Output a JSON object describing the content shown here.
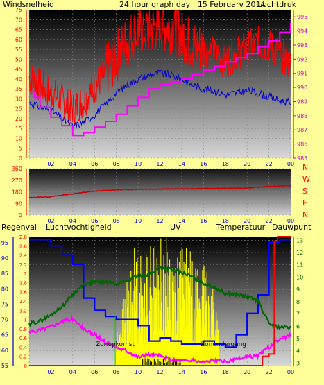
{
  "colors": {
    "bg": "#ffff99",
    "windspeed": "#ff0000",
    "gust": "#0000cc",
    "pressure": "#ff00ff",
    "direction": "#cc0000",
    "humidity": "#0000ff",
    "temperature": "#006600",
    "dewpoint": "#ff00ff",
    "rain": "#ff0000",
    "uv": "#ffff00",
    "solar_green": "#00cc00",
    "lbl_red": "#ff0000",
    "lbl_blue": "#0000cc",
    "lbl_magenta": "#cc00cc",
    "lbl_green": "#006600",
    "lbl_title": "#0000cc"
  },
  "chart_data": [
    {
      "type": "line",
      "title": "24 hour graph day : 15 Februarv 2014",
      "left_axis_label": "Windsnelheid",
      "right_axis_label": "Luchtdruk",
      "x_ticks": [
        "02",
        "04",
        "06",
        "08",
        "10",
        "12",
        "14",
        "16",
        "18",
        "20",
        "22",
        "00"
      ],
      "x_hours": [
        0,
        2,
        4,
        6,
        8,
        10,
        12,
        14,
        16,
        18,
        20,
        22,
        24
      ],
      "yleft_ticks": [
        0,
        5,
        10,
        15,
        20,
        25,
        30,
        35,
        40,
        45,
        50,
        55,
        60,
        65,
        70,
        75
      ],
      "yleft_lim": [
        0,
        75
      ],
      "yright_ticks": [
        985,
        986,
        987,
        988,
        989,
        990,
        991,
        992,
        993,
        994,
        995
      ],
      "yright_lim": [
        985,
        995.5
      ],
      "series": [
        {
          "axis": "left",
          "kind": "noisy",
          "color": "windspeed",
          "x": [
            0,
            1,
            2,
            3,
            4,
            5,
            6,
            7,
            8,
            9,
            10,
            11,
            12,
            13,
            14,
            15,
            16,
            17,
            18,
            19,
            20,
            21,
            22,
            23,
            24
          ],
          "y": [
            40,
            36,
            32,
            28,
            24,
            28,
            35,
            42,
            50,
            58,
            63,
            64,
            66,
            65,
            62,
            55,
            54,
            52,
            48,
            52,
            55,
            57,
            56,
            52,
            46
          ]
        },
        {
          "axis": "left",
          "kind": "line",
          "color": "gust",
          "x": [
            0,
            1,
            2,
            3,
            4,
            5,
            6,
            7,
            8,
            9,
            10,
            11,
            12,
            13,
            14,
            15,
            16,
            17,
            18,
            19,
            20,
            21,
            22,
            23,
            24
          ],
          "y": [
            28,
            26,
            24,
            20,
            16,
            18,
            22,
            27,
            33,
            37,
            40,
            42,
            43,
            42,
            40,
            37,
            35,
            34,
            32,
            33,
            34,
            33,
            31,
            29,
            28
          ]
        },
        {
          "axis": "right",
          "kind": "step",
          "color": "pressure",
          "x": [
            0,
            0.5,
            1,
            2,
            3,
            4,
            5,
            6,
            7,
            8,
            9,
            10,
            11,
            12,
            13,
            14,
            15,
            16,
            17,
            18,
            19,
            20,
            21,
            22,
            23,
            24
          ],
          "y": [
            989.7,
            989.3,
            988.6,
            987.9,
            987.3,
            986.6,
            986.8,
            987.2,
            987.6,
            988.1,
            988.7,
            989.3,
            989.9,
            990.2,
            990.4,
            990.6,
            990.9,
            991.2,
            991.5,
            991.8,
            992.1,
            992.4,
            992.9,
            993.3,
            993.9,
            994.6
          ]
        }
      ]
    },
    {
      "type": "line",
      "left_ticks": [
        0,
        90,
        180,
        270,
        360
      ],
      "ylim": [
        0,
        360
      ],
      "right_labels": [
        "N",
        "W",
        "S",
        "E",
        "N"
      ],
      "x_ticks": [
        "02",
        "04",
        "06",
        "08",
        "10",
        "12",
        "14",
        "16",
        "18",
        "20",
        "22",
        "00"
      ],
      "series": [
        {
          "name": "direction",
          "color": "direction",
          "x": [
            0,
            2,
            4,
            6,
            8,
            10,
            12,
            14,
            16,
            18,
            20,
            22,
            24
          ],
          "y": [
            135,
            142,
            165,
            185,
            195,
            200,
            202,
            203,
            205,
            207,
            210,
            222,
            228
          ]
        }
      ]
    },
    {
      "type": "line",
      "labels": {
        "rain": "Regenval",
        "humidity": "Luchtvochtigheid",
        "uv": "UV",
        "temperature": "Temperatuur",
        "dewpoint": "Dauwpunt",
        "solar_left": "Zonopkomst",
        "solar_right": "Zonondergang"
      },
      "rain_ticks": [
        "0",
        "0.2",
        "0.4",
        "0.6",
        "0.8",
        "1",
        "1.2",
        "1.4",
        "1.6",
        "1.8",
        "2",
        "2.2",
        "2.4",
        "2.6",
        "2.8"
      ],
      "rain_lim": [
        0,
        2.8
      ],
      "humidity_ticks": [
        55,
        60,
        65,
        70,
        75,
        80,
        85,
        90,
        95
      ],
      "humidity_lim": [
        55,
        97
      ],
      "temp_ticks": [
        3,
        4,
        5,
        6,
        7,
        8,
        9,
        10,
        11,
        12,
        13
      ],
      "temp_lim": [
        2.8,
        13.3
      ],
      "x_ticks": [
        "02",
        "04",
        "06",
        "08",
        "10",
        "12",
        "14",
        "16",
        "18",
        "20",
        "22",
        "00"
      ],
      "series": [
        {
          "name": "humidity",
          "axis": "humidity",
          "kind": "step",
          "color": "humidity",
          "x": [
            0,
            1,
            2,
            3,
            4,
            5,
            6,
            7,
            8,
            9,
            10,
            11,
            12,
            13,
            14,
            15,
            16,
            17,
            18,
            19,
            20,
            21,
            22,
            23,
            24
          ],
          "y": [
            96,
            96,
            94,
            91,
            88,
            77,
            73,
            71,
            70,
            70,
            68,
            63,
            64,
            63,
            62,
            62,
            63,
            62,
            61,
            65,
            72,
            78,
            95,
            96,
            96
          ]
        },
        {
          "name": "temperature",
          "axis": "temp",
          "kind": "line",
          "color": "temperature",
          "x": [
            0,
            1,
            2,
            3,
            4,
            5,
            6,
            7,
            8,
            9,
            10,
            11,
            12,
            13,
            14,
            15,
            16,
            17,
            18,
            19,
            20,
            21,
            22,
            23,
            24
          ],
          "y": [
            6.2,
            6.4,
            6.9,
            7.6,
            8.6,
            9.4,
            9.6,
            9.6,
            9.5,
            9.7,
            10.1,
            10.2,
            10.8,
            10.6,
            10.4,
            10.0,
            9.5,
            9.2,
            8.7,
            8.6,
            8.4,
            8.1,
            6.2,
            5.9,
            5.9
          ]
        },
        {
          "name": "dewpoint",
          "axis": "temp",
          "kind": "line",
          "color": "dewpoint",
          "x": [
            0,
            1,
            2,
            3,
            4,
            5,
            6,
            7,
            8,
            9,
            10,
            11,
            12,
            13,
            14,
            15,
            16,
            17,
            18,
            19,
            20,
            21,
            22,
            23,
            24
          ],
          "y": [
            5.5,
            5.7,
            6.0,
            6.4,
            6.6,
            5.8,
            5.3,
            4.7,
            4.3,
            4.0,
            3.5,
            3.7,
            3.6,
            3.3,
            3.2,
            3.2,
            3.1,
            3.2,
            3.1,
            3.3,
            3.5,
            3.6,
            4.3,
            4.9,
            5.3
          ]
        },
        {
          "name": "rain",
          "axis": "rain",
          "kind": "step",
          "color": "rain",
          "x": [
            0,
            21.4,
            21.4,
            22,
            22.5,
            22.8,
            24
          ],
          "y": [
            0,
            0,
            0.2,
            0.25,
            2.7,
            2.8,
            2.8
          ]
        },
        {
          "name": "uv",
          "axis": "rain",
          "kind": "uvbars",
          "color": "uv",
          "x": [
            7.9,
            9.6,
            10.5,
            11.2,
            11.9,
            12.6,
            13.3,
            14.0,
            14.7,
            15.4,
            16.1,
            16.8,
            17.4
          ],
          "y": [
            0.6,
            2.6,
            2.4,
            2.7,
            2.8,
            2.8,
            2.6,
            2.7,
            2.5,
            2.4,
            2.2,
            2.0,
            1.0
          ]
        }
      ],
      "solar_markers": [
        7.9,
        17.6
      ]
    }
  ]
}
